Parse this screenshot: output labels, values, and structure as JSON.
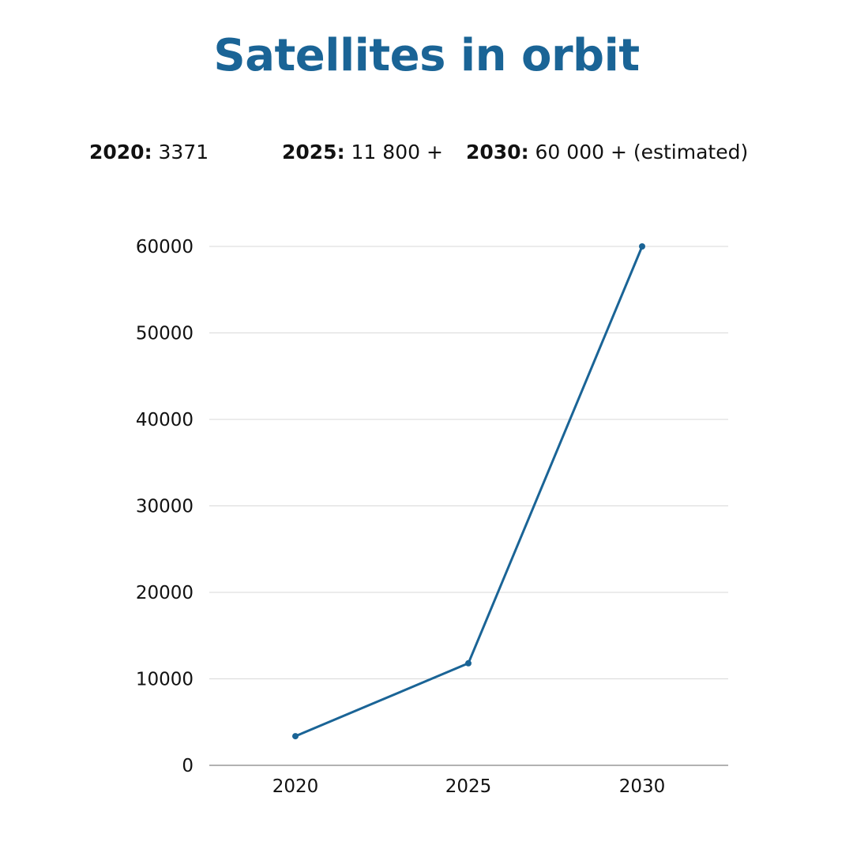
{
  "title": "Satellites in orbit",
  "stats": [
    {
      "label": "2020:",
      "value": "3371"
    },
    {
      "label": "2025:",
      "value": "11 800 +"
    },
    {
      "label": "2030:",
      "value": "60 000 + (estimated)"
    }
  ],
  "colors": {
    "title": "#1a6496",
    "line": "#1a6496",
    "grid": "#d9d9d9",
    "axis": "#999999"
  },
  "chart_data": {
    "type": "line",
    "title": "Satellites in orbit",
    "xlabel": "",
    "ylabel": "",
    "categories": [
      "2020",
      "2025",
      "2030"
    ],
    "values": [
      3371,
      11800,
      60000
    ],
    "ylim": [
      0,
      60000
    ],
    "yticks": [
      0,
      10000,
      20000,
      30000,
      40000,
      50000,
      60000
    ],
    "ytick_labels": [
      "0",
      "10000",
      "20000",
      "30000",
      "40000",
      "50000",
      "60000"
    ],
    "grid": true,
    "legend": "none"
  }
}
